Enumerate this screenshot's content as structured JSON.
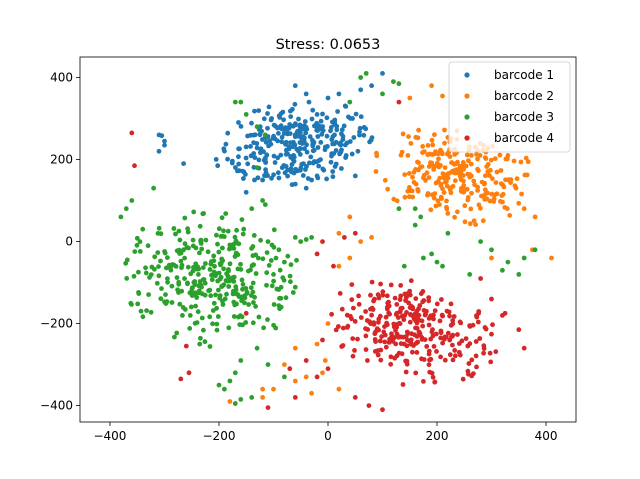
{
  "chart_data": {
    "type": "scatter",
    "title": "Stress: 0.0653",
    "xlabel": "",
    "ylabel": "",
    "xlim": [
      -455,
      455
    ],
    "ylim": [
      -440,
      450
    ],
    "xticks": [
      -400,
      -200,
      0,
      200,
      400
    ],
    "yticks": [
      -400,
      -200,
      0,
      200,
      400
    ],
    "xtick_labels": [
      "−400",
      "−200",
      "0",
      "200",
      "400"
    ],
    "ytick_labels": [
      "−400",
      "−200",
      "0",
      "200",
      "400"
    ],
    "grid": false,
    "legend_position": "top-right",
    "series": [
      {
        "name": "barcode 1",
        "color": "#1f77b4",
        "cluster": {
          "cx": -60,
          "cy": 235,
          "rx": 150,
          "ry": 100,
          "angle": 12,
          "n": 300
        },
        "points": [
          [
            -305,
            258
          ],
          [
            -310,
            220
          ],
          [
            -300,
            235
          ],
          [
            -300,
            245
          ],
          [
            -265,
            190
          ],
          [
            -310,
            260
          ],
          [
            -150,
            120
          ],
          [
            -120,
            150
          ],
          [
            -90,
            155
          ],
          [
            -60,
            140
          ],
          [
            -40,
            130
          ],
          [
            -30,
            150
          ],
          [
            -20,
            160
          ],
          [
            50,
            160
          ],
          [
            80,
            380
          ],
          [
            60,
            370
          ],
          [
            100,
            410
          ],
          [
            45,
            300
          ],
          [
            -40,
            360
          ],
          [
            -60,
            380
          ],
          [
            -20,
            310
          ],
          [
            0,
            350
          ],
          [
            20,
            360
          ]
        ]
      },
      {
        "name": "barcode 2",
        "color": "#ff7f0e",
        "cluster": {
          "cx": 235,
          "cy": 160,
          "rx": 150,
          "ry": 110,
          "angle": -20,
          "n": 260
        },
        "points": [
          [
            410,
            -40
          ],
          [
            375,
            -20
          ],
          [
            300,
            -40
          ],
          [
            380,
            60
          ],
          [
            360,
            80
          ],
          [
            345,
            130
          ],
          [
            330,
            210
          ],
          [
            190,
            380
          ],
          [
            210,
            355
          ],
          [
            150,
            350
          ],
          [
            0,
            -200
          ],
          [
            -20,
            -250
          ],
          [
            -60,
            -260
          ],
          [
            -10,
            -320
          ],
          [
            -40,
            -330
          ],
          [
            -100,
            -360
          ],
          [
            -120,
            -360
          ],
          [
            -180,
            -390
          ],
          [
            -120,
            -380
          ],
          [
            -30,
            -370
          ],
          [
            20,
            -360
          ],
          [
            40,
            -40
          ],
          [
            20,
            20
          ],
          [
            60,
            0
          ],
          [
            80,
            10
          ],
          [
            40,
            60
          ],
          [
            -60,
            -340
          ],
          [
            -5,
            -290
          ],
          [
            -80,
            -300
          ],
          [
            20,
            -60
          ]
        ]
      },
      {
        "name": "barcode 3",
        "color": "#2ca02c",
        "cluster": {
          "cx": -215,
          "cy": -90,
          "rx": 160,
          "ry": 165,
          "angle": 35,
          "n": 330
        },
        "points": [
          [
            -380,
            60
          ],
          [
            -370,
            80
          ],
          [
            -360,
            100
          ],
          [
            -340,
            30
          ],
          [
            -320,
            130
          ],
          [
            -330,
            -10
          ],
          [
            -100,
            -80
          ],
          [
            -80,
            -50
          ],
          [
            -90,
            -20
          ],
          [
            -60,
            10
          ],
          [
            -50,
            0
          ],
          [
            -40,
            5
          ],
          [
            -30,
            10
          ],
          [
            -110,
            0
          ],
          [
            -160,
            340
          ],
          [
            -150,
            310
          ],
          [
            -170,
            340
          ],
          [
            -130,
            280
          ],
          [
            -115,
            260
          ],
          [
            -130,
            180
          ],
          [
            -120,
            100
          ],
          [
            -115,
            90
          ],
          [
            -140,
            80
          ],
          [
            -130,
            -260
          ],
          [
            -160,
            -290
          ],
          [
            -170,
            -320
          ],
          [
            -180,
            -340
          ],
          [
            -200,
            -350
          ],
          [
            -190,
            -360
          ],
          [
            -160,
            -385
          ],
          [
            -170,
            -395
          ],
          [
            -140,
            -380
          ],
          [
            -110,
            -300
          ],
          [
            -80,
            -330
          ],
          [
            60,
            400
          ],
          [
            70,
            410
          ],
          [
            120,
            390
          ],
          [
            130,
            385
          ],
          [
            100,
            360
          ],
          [
            40,
            340
          ],
          [
            130,
            80
          ],
          [
            160,
            80
          ],
          [
            170,
            60
          ],
          [
            220,
            20
          ],
          [
            190,
            -30
          ],
          [
            200,
            -50
          ],
          [
            260,
            -80
          ],
          [
            350,
            -80
          ],
          [
            330,
            -50
          ],
          [
            320,
            -70
          ],
          [
            380,
            -20
          ],
          [
            360,
            -40
          ],
          [
            160,
            40
          ],
          [
            175,
            -40
          ],
          [
            210,
            -60
          ],
          [
            280,
            0
          ],
          [
            300,
            -20
          ],
          [
            140,
            -60
          ]
        ]
      },
      {
        "name": "barcode 4",
        "color": "#d62728",
        "cluster": {
          "cx": 150,
          "cy": -220,
          "rx": 165,
          "ry": 120,
          "angle": -25,
          "n": 300
        },
        "points": [
          [
            -360,
            265
          ],
          [
            -355,
            185
          ],
          [
            -150,
            -175
          ],
          [
            -260,
            -255
          ],
          [
            -255,
            -320
          ],
          [
            -270,
            -335
          ],
          [
            -110,
            -405
          ],
          [
            -60,
            -380
          ],
          [
            130,
            340
          ],
          [
            -10,
            0
          ],
          [
            50,
            20
          ],
          [
            30,
            10
          ],
          [
            -20,
            -30
          ],
          [
            10,
            -60
          ],
          [
            -40,
            -290
          ],
          [
            -10,
            -240
          ],
          [
            -70,
            -310
          ],
          [
            100,
            -410
          ],
          [
            -20,
            -330
          ],
          [
            50,
            -380
          ],
          [
            75,
            -400
          ],
          [
            0,
            -310
          ],
          [
            360,
            -260
          ],
          [
            350,
            -215
          ],
          [
            320,
            -180
          ],
          [
            325,
            -175
          ],
          [
            300,
            -140
          ],
          [
            280,
            -90
          ]
        ]
      }
    ]
  }
}
